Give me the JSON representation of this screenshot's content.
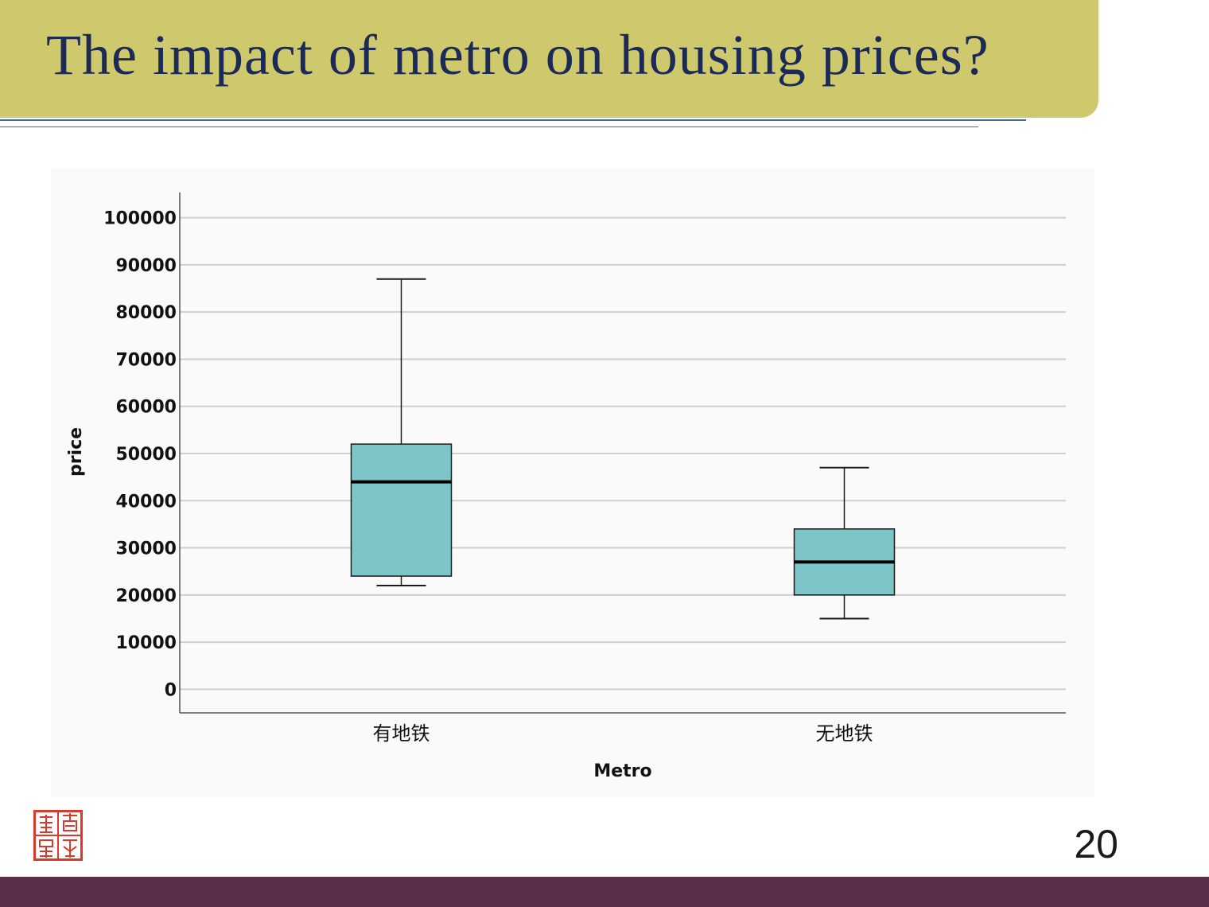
{
  "slide": {
    "title": "The impact of metro on housing prices?",
    "page_number": "20"
  },
  "colors": {
    "banner": "#cfc96e",
    "title_text": "#1c2a56",
    "rule": "#3f6e8a",
    "box_fill": "#7ec5c7",
    "footer": "#5b2f4a",
    "seal": "#d93a2a"
  },
  "icons": {
    "seal": "university-seal-icon"
  },
  "chart_data": {
    "type": "boxplot",
    "xlabel": "Metro",
    "ylabel": "price",
    "ylim": [
      -5000,
      105000
    ],
    "yticks": [
      0,
      10000,
      20000,
      30000,
      40000,
      50000,
      60000,
      70000,
      80000,
      90000,
      100000
    ],
    "grid": true,
    "categories": [
      "有地铁",
      "无地铁"
    ],
    "boxes": [
      {
        "category": "有地铁",
        "whisker_low": 22000,
        "q1": 24000,
        "median": 44000,
        "q3": 52000,
        "whisker_high": 87000
      },
      {
        "category": "无地铁",
        "whisker_low": 15000,
        "q1": 20000,
        "median": 27000,
        "q3": 34000,
        "whisker_high": 47000
      }
    ]
  }
}
